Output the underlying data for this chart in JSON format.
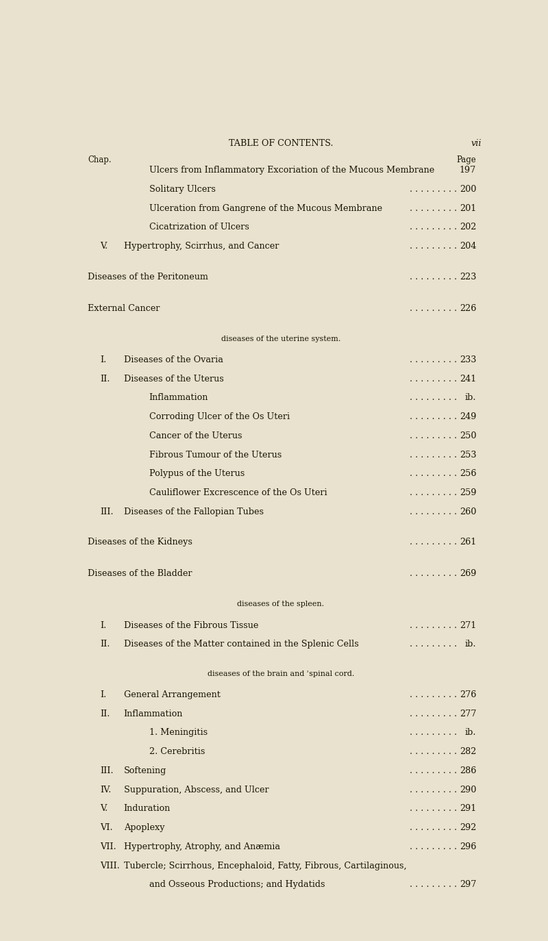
{
  "background_color": "#e8e2ce",
  "page_width": 8.0,
  "page_height": 13.74,
  "header_title": "TABLE OF CONTENTS.",
  "header_page": "vii",
  "chap_label": "Chap.",
  "page_label": "Page",
  "sections": [
    {
      "indent": 1,
      "num": "",
      "text": "Ulcers from Inflammatory Excoriation of the Mucous Membrane",
      "page": "197",
      "dots": false,
      "style": "normal"
    },
    {
      "indent": 1,
      "num": "",
      "text": "Solitary Ulcers",
      "page": "200",
      "dots": true,
      "style": "normal"
    },
    {
      "indent": 1,
      "num": "",
      "text": "Ulceration from Gangrene of the Mucous Membrane",
      "page": "201",
      "dots": true,
      "style": "normal"
    },
    {
      "indent": 1,
      "num": "",
      "text": "Cicatrization of Ulcers",
      "page": "202",
      "dots": true,
      "style": "normal"
    },
    {
      "indent": 0,
      "num": "V.",
      "text": "Hypertrophy, Scirrhus, and Cancer",
      "page": "204",
      "dots": true,
      "style": "normal"
    },
    {
      "indent": -1,
      "num": "",
      "text": "",
      "page": "",
      "dots": false,
      "style": "spacer"
    },
    {
      "indent": -1,
      "num": "",
      "text": "Diseases of the Peritoneum",
      "page": "223",
      "dots": true,
      "style": "section_header"
    },
    {
      "indent": -1,
      "num": "",
      "text": "",
      "page": "",
      "dots": false,
      "style": "spacer"
    },
    {
      "indent": -1,
      "num": "",
      "text": "External Cancer",
      "page": "226",
      "dots": true,
      "style": "section_header"
    },
    {
      "indent": -1,
      "num": "",
      "text": "",
      "page": "",
      "dots": false,
      "style": "spacer"
    },
    {
      "indent": -1,
      "num": "",
      "text": "diseases of the uterine system.",
      "page": "",
      "dots": false,
      "style": "center_header"
    },
    {
      "indent": 0,
      "num": "I.",
      "text": "Diseases of the Ovaria",
      "page": "233",
      "dots": true,
      "style": "normal"
    },
    {
      "indent": 0,
      "num": "II.",
      "text": "Diseases of the Uterus",
      "page": "241",
      "dots": true,
      "style": "normal"
    },
    {
      "indent": 1,
      "num": "",
      "text": "Inflammation",
      "page": "ib.",
      "dots": true,
      "style": "normal"
    },
    {
      "indent": 1,
      "num": "",
      "text": "Corroding Ulcer of the Os Uteri",
      "page": "249",
      "dots": true,
      "style": "normal"
    },
    {
      "indent": 1,
      "num": "",
      "text": "Cancer of the Uterus",
      "page": "250",
      "dots": true,
      "style": "normal"
    },
    {
      "indent": 1,
      "num": "",
      "text": "Fibrous Tumour of the Uterus",
      "page": "253",
      "dots": true,
      "style": "normal"
    },
    {
      "indent": 1,
      "num": "",
      "text": "Polypus of the Uterus",
      "page": "256",
      "dots": true,
      "style": "normal"
    },
    {
      "indent": 1,
      "num": "",
      "text": "Cauliflower Excrescence of the Os Uteri",
      "page": "259",
      "dots": true,
      "style": "normal"
    },
    {
      "indent": 0,
      "num": "III.",
      "text": "Diseases of the Fallopian Tubes",
      "page": "260",
      "dots": true,
      "style": "normal"
    },
    {
      "indent": -1,
      "num": "",
      "text": "",
      "page": "",
      "dots": false,
      "style": "spacer"
    },
    {
      "indent": -1,
      "num": "",
      "text": "Diseases of the Kidneys",
      "page": "261",
      "dots": true,
      "style": "section_header"
    },
    {
      "indent": -1,
      "num": "",
      "text": "",
      "page": "",
      "dots": false,
      "style": "spacer"
    },
    {
      "indent": -1,
      "num": "",
      "text": "Diseases of the Bladder",
      "page": "269",
      "dots": true,
      "style": "section_header"
    },
    {
      "indent": -1,
      "num": "",
      "text": "",
      "page": "",
      "dots": false,
      "style": "spacer"
    },
    {
      "indent": -1,
      "num": "",
      "text": "diseases of the spleen.",
      "page": "",
      "dots": false,
      "style": "center_header"
    },
    {
      "indent": 0,
      "num": "I.",
      "text": "Diseases of the Fibrous Tissue",
      "page": "271",
      "dots": true,
      "style": "normal"
    },
    {
      "indent": 0,
      "num": "II.",
      "text": "Diseases of the Matter contained in the Splenic Cells",
      "page": "ib.",
      "dots": true,
      "style": "normal"
    },
    {
      "indent": -1,
      "num": "",
      "text": "",
      "page": "",
      "dots": false,
      "style": "spacer"
    },
    {
      "indent": -1,
      "num": "",
      "text": "diseases of the brain and ʾspinal cord.",
      "page": "",
      "dots": false,
      "style": "center_header"
    },
    {
      "indent": 0,
      "num": "I.",
      "text": "General Arrangement",
      "page": "276",
      "dots": true,
      "style": "normal"
    },
    {
      "indent": 0,
      "num": "II.",
      "text": "Inflammation",
      "page": "277",
      "dots": true,
      "style": "normal"
    },
    {
      "indent": 1,
      "num": "",
      "text": "1. Meningitis",
      "page": "ib.",
      "dots": true,
      "style": "normal"
    },
    {
      "indent": 1,
      "num": "",
      "text": "2. Cerebritis",
      "page": "282",
      "dots": true,
      "style": "normal"
    },
    {
      "indent": 0,
      "num": "III.",
      "text": "Softening",
      "page": "286",
      "dots": true,
      "style": "normal"
    },
    {
      "indent": 0,
      "num": "IV.",
      "text": "Suppuration, Abscess, and Ulcer",
      "page": "290",
      "dots": true,
      "style": "normal"
    },
    {
      "indent": 0,
      "num": "V.",
      "text": "Induration",
      "page": "291",
      "dots": true,
      "style": "normal"
    },
    {
      "indent": 0,
      "num": "VI.",
      "text": "Apoplexy",
      "page": "292",
      "dots": true,
      "style": "normal"
    },
    {
      "indent": 0,
      "num": "VII.",
      "text": "Hypertrophy, Atrophy, and Anæmia",
      "page": "296",
      "dots": true,
      "style": "normal"
    },
    {
      "indent": 0,
      "num": "VIII.",
      "text": "Tubercle; Scirrhous, Encephaloid, Fatty, Fibrous, Cartilaginous,",
      "page": "",
      "dots": false,
      "style": "normal"
    },
    {
      "indent": 1,
      "num": "",
      "text": "and Osseous Productions; and Hydatids",
      "page": "297",
      "dots": true,
      "style": "normal"
    }
  ]
}
